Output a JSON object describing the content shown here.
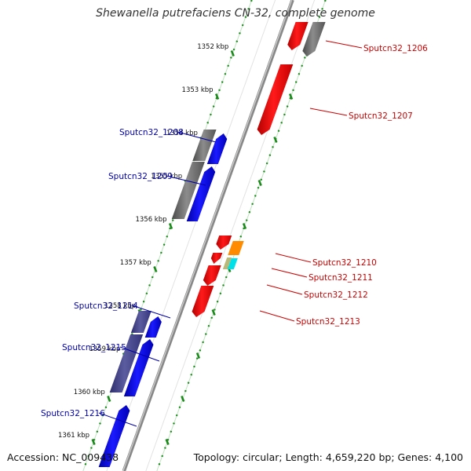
{
  "title": "Shewanella putrefaciens CN-32, complete genome",
  "footer": {
    "accession": "Accession: NC_009438",
    "summary": "Topology: circular; Length: 4,659,220 bp; Genes: 4,100"
  },
  "colors": {
    "forward_strand_gene": "#0000ff",
    "forward_strand_pseudo": "#4b4b8c",
    "reverse_strand_gene": "#ff0000",
    "reverse_strand_pseudo": "#6e6e6e",
    "tick_marks": "#1a8a1a",
    "backbone": "#7a7a7a",
    "label_reverse": "#cc0000",
    "label_forward": "#0000aa"
  },
  "ticks": [
    {
      "kbp": 1352,
      "label": "1352 kbp"
    },
    {
      "kbp": 1353,
      "label": "1353 kbp"
    },
    {
      "kbp": 1354,
      "label": "1354 kbp"
    },
    {
      "kbp": 1355,
      "label": "1355 kbp"
    },
    {
      "kbp": 1356,
      "label": "1356 kbp"
    },
    {
      "kbp": 1357,
      "label": "1357 kbp"
    },
    {
      "kbp": 1358,
      "label": "1358 kbp"
    },
    {
      "kbp": 1359,
      "label": "1359 kbp"
    },
    {
      "kbp": 1360,
      "label": "1360 kbp"
    },
    {
      "kbp": 1361,
      "label": "1361 kbp"
    }
  ],
  "genes": [
    {
      "label": "Sputcn32_1206",
      "strand": "reverse"
    },
    {
      "label": "Sputcn32_1207",
      "strand": "reverse"
    },
    {
      "label": "Sputcn32_1208",
      "strand": "forward"
    },
    {
      "label": "Sputcn32_1209",
      "strand": "forward"
    },
    {
      "label": "Sputcn32_1210",
      "strand": "reverse"
    },
    {
      "label": "Sputcn32_1211",
      "strand": "reverse"
    },
    {
      "label": "Sputcn32_1212",
      "strand": "reverse"
    },
    {
      "label": "Sputcn32_1213",
      "strand": "reverse"
    },
    {
      "label": "Sputcn32_1214",
      "strand": "forward"
    },
    {
      "label": "Sputcn32_1215",
      "strand": "forward"
    },
    {
      "label": "Sputcn32_1216",
      "strand": "forward"
    }
  ]
}
